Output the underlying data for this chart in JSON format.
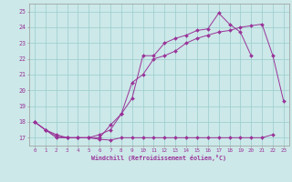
{
  "xlabel": "Windchill (Refroidissement éolien,°C)",
  "bg_color": "#cce8e8",
  "grid_color": "#99cccc",
  "line_color": "#993399",
  "ylim": [
    16.5,
    25.5
  ],
  "xlim": [
    -0.5,
    23.5
  ],
  "yticks": [
    17,
    18,
    19,
    20,
    21,
    22,
    23,
    24,
    25
  ],
  "xticks": [
    0,
    1,
    2,
    3,
    4,
    5,
    6,
    7,
    8,
    9,
    10,
    11,
    12,
    13,
    14,
    15,
    16,
    17,
    18,
    19,
    20,
    21,
    22,
    23
  ],
  "line1_x": [
    0,
    1,
    2,
    3,
    4,
    5,
    6,
    7,
    8,
    9,
    10,
    11,
    12,
    13,
    14,
    15,
    16,
    17,
    18,
    19,
    20,
    21,
    22
  ],
  "line1_y": [
    18,
    17.5,
    17.0,
    17.0,
    17.0,
    17.0,
    16.9,
    16.85,
    17.0,
    17.0,
    17.0,
    17.0,
    17.0,
    17.0,
    17.0,
    17.0,
    17.0,
    17.0,
    17.0,
    17.0,
    17.0,
    17.0,
    17.2
  ],
  "line2_x": [
    0,
    1,
    2,
    3,
    4,
    5,
    6,
    7,
    8,
    9,
    10,
    11,
    12,
    13,
    14,
    15,
    16,
    17,
    18,
    19,
    20
  ],
  "line2_y": [
    18,
    17.5,
    17.1,
    17.0,
    17.0,
    17.0,
    17.0,
    17.8,
    18.5,
    19.5,
    22.2,
    22.2,
    23.0,
    23.3,
    23.5,
    23.8,
    23.9,
    24.9,
    24.2,
    23.7,
    22.2
  ],
  "line3_x": [
    0,
    1,
    2,
    3,
    4,
    5,
    6,
    7,
    8,
    9,
    10,
    11,
    12,
    13,
    14,
    15,
    16,
    17,
    18,
    19,
    20,
    21,
    22,
    23
  ],
  "line3_y": [
    18,
    17.5,
    17.2,
    17.0,
    17.0,
    17.0,
    17.2,
    17.5,
    18.5,
    20.5,
    21.0,
    22.0,
    22.2,
    22.5,
    23.0,
    23.3,
    23.5,
    23.7,
    23.8,
    24.0,
    24.1,
    24.2,
    22.2,
    19.3
  ]
}
